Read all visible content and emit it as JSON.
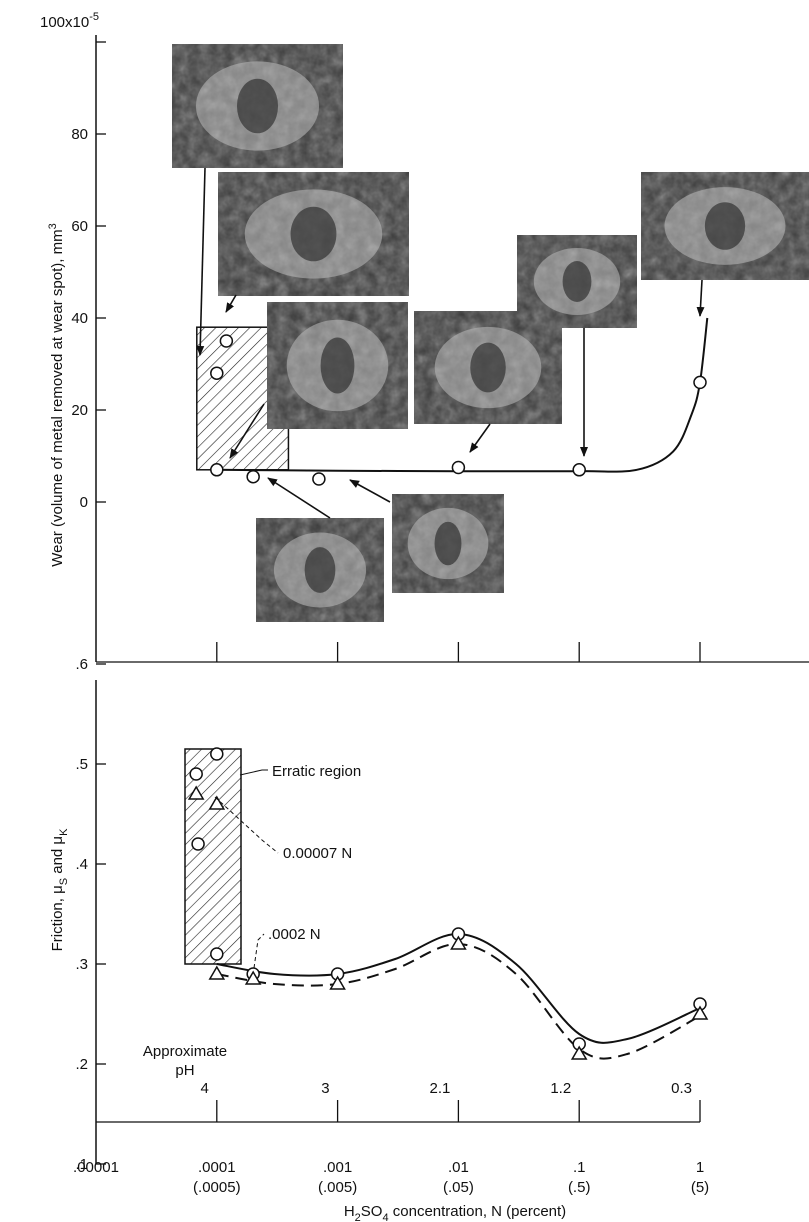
{
  "chart_data": [
    {
      "type": "line",
      "x_scale": "log",
      "xlim": [
        1e-05,
        1
      ],
      "ylim": [
        0,
        100
      ],
      "y_axis": {
        "ticks": [
          0,
          20,
          40,
          60,
          80
        ],
        "tick_labels": [
          "0",
          "20",
          "40",
          "60",
          "80"
        ],
        "top_label": "100x10",
        "top_label_exp": "-5",
        "label": "Wear (volume of metal removed at wear spot),  mm",
        "label_sup": "3"
      },
      "erratic_region": {
        "x": [
          0.0001,
          0.0003
        ],
        "y": [
          7,
          38
        ]
      },
      "points": [
        {
          "x": 0.0001,
          "y": 28
        },
        {
          "x": 0.00012,
          "y": 35
        },
        {
          "x": 0.0001,
          "y": 7
        },
        {
          "x": 0.0002,
          "y": 5.5
        },
        {
          "x": 0.0007,
          "y": 5
        },
        {
          "x": 0.01,
          "y": 7.5
        },
        {
          "x": 0.1,
          "y": 7
        },
        {
          "x": 1,
          "y": 26
        }
      ],
      "curve": [
        {
          "x": 0.0001,
          "y": 7
        },
        {
          "x": 0.001,
          "y": 6.8
        },
        {
          "x": 0.01,
          "y": 6.7
        },
        {
          "x": 0.1,
          "y": 6.7
        },
        {
          "x": 0.3,
          "y": 7
        },
        {
          "x": 0.6,
          "y": 11
        },
        {
          "x": 0.85,
          "y": 19
        },
        {
          "x": 1,
          "y": 26
        },
        {
          "x": 1.15,
          "y": 40
        }
      ],
      "micrographs": [
        {
          "name": "micrograph-1",
          "pt": 0
        },
        {
          "name": "micrograph-2",
          "pt": 1
        },
        {
          "name": "micrograph-3",
          "pt": 2
        },
        {
          "name": "micrograph-4",
          "pt": 5
        },
        {
          "name": "micrograph-5",
          "pt": 6
        },
        {
          "name": "micrograph-6",
          "pt": 7
        },
        {
          "name": "micrograph-7",
          "pt": 3
        },
        {
          "name": "micrograph-8",
          "pt": 4
        }
      ]
    },
    {
      "type": "line",
      "x_scale": "log",
      "xlim": [
        1e-05,
        1
      ],
      "ylim": [
        0.1,
        0.6
      ],
      "y_axis": {
        "ticks": [
          0.1,
          0.2,
          0.3,
          0.4,
          0.5,
          0.6
        ],
        "tick_labels": [
          ".1",
          ".2",
          ".3",
          ".4",
          ".5",
          ".6"
        ],
        "label": "Friction,  μ",
        "label_sub1": "S",
        "label_mid": " and μ",
        "label_sub2": "K"
      },
      "x_axis": {
        "ticks": [
          1e-05,
          0.0001,
          0.001,
          0.01,
          0.1,
          1
        ],
        "tick_labels": [
          ".00001",
          ".0001",
          ".001",
          ".01",
          ".1",
          "1"
        ],
        "percent_labels": [
          "",
          "(.0005)",
          "(.005)",
          "(.05)",
          "(.5)",
          "(5)"
        ],
        "label_pre": "H",
        "label_sub1": "2",
        "label_mid": "SO",
        "label_sub2": "4",
        "label_post": " concentration,  N (percent)"
      },
      "ph": {
        "title_line1": "Approximate",
        "title_line2": "pH",
        "x": [
          0.0001,
          0.001,
          0.01,
          0.1,
          1
        ],
        "labels": [
          "4",
          "3",
          "2.1",
          "1.2",
          "0.3"
        ]
      },
      "erratic_region": {
        "x": [
          6.75e-05,
          0.0002
        ],
        "y": [
          0.3,
          0.515
        ]
      },
      "annotations": {
        "erratic": "Erratic region",
        "c1": "0.00007 N",
        "c2": ".0002 N"
      },
      "series": [
        {
          "name": "μS",
          "style": "solid",
          "marker": "circle",
          "points": [
            {
              "x": 6.75e-05,
              "y": 0.49
            },
            {
              "x": 0.0001,
              "y": 0.51
            },
            {
              "x": 7e-05,
              "y": 0.42
            },
            {
              "x": 0.0001,
              "y": 0.31
            },
            {
              "x": 0.0002,
              "y": 0.29
            },
            {
              "x": 0.001,
              "y": 0.29
            },
            {
              "x": 0.01,
              "y": 0.33
            },
            {
              "x": 0.1,
              "y": 0.22
            },
            {
              "x": 1,
              "y": 0.26
            }
          ],
          "curve": [
            {
              "x": 0.0001,
              "y": 0.3
            },
            {
              "x": 0.0003,
              "y": 0.29
            },
            {
              "x": 0.001,
              "y": 0.29
            },
            {
              "x": 0.003,
              "y": 0.305
            },
            {
              "x": 0.01,
              "y": 0.33
            },
            {
              "x": 0.03,
              "y": 0.3
            },
            {
              "x": 0.1,
              "y": 0.23
            },
            {
              "x": 0.25,
              "y": 0.225
            },
            {
              "x": 1,
              "y": 0.256
            }
          ]
        },
        {
          "name": "μK",
          "style": "dashed",
          "marker": "triangle",
          "points": [
            {
              "x": 6.75e-05,
              "y": 0.47
            },
            {
              "x": 0.0001,
              "y": 0.46
            },
            {
              "x": 0.0001,
              "y": 0.29
            },
            {
              "x": 0.0002,
              "y": 0.285
            },
            {
              "x": 0.001,
              "y": 0.28
            },
            {
              "x": 0.01,
              "y": 0.32
            },
            {
              "x": 0.1,
              "y": 0.21
            },
            {
              "x": 1,
              "y": 0.25
            }
          ],
          "curve": [
            {
              "x": 0.0001,
              "y": 0.29
            },
            {
              "x": 0.0003,
              "y": 0.28
            },
            {
              "x": 0.001,
              "y": 0.28
            },
            {
              "x": 0.003,
              "y": 0.295
            },
            {
              "x": 0.01,
              "y": 0.32
            },
            {
              "x": 0.03,
              "y": 0.29
            },
            {
              "x": 0.1,
              "y": 0.215
            },
            {
              "x": 0.25,
              "y": 0.21
            },
            {
              "x": 1,
              "y": 0.248
            }
          ]
        }
      ]
    }
  ]
}
